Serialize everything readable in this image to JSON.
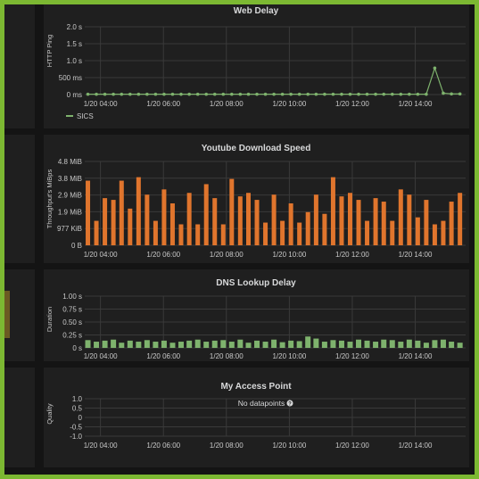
{
  "colors": {
    "accent_border": "#7cb832",
    "background": "#141414",
    "panel_bg": "#1f1f1f",
    "green_series": "#7eb26d",
    "orange_series": "#e0752d"
  },
  "chart_data": [
    {
      "id": "web-delay",
      "type": "line",
      "title": "Web Delay",
      "ylabel": "HTTP Ping",
      "xlabel": "",
      "yticks": [
        "2.0 s",
        "1.5 s",
        "1.0 s",
        "500 ms",
        "0 ms"
      ],
      "ylim": [
        0,
        2.0
      ],
      "xticks": [
        "1/20 04:00",
        "1/20 06:00",
        "1/20 08:00",
        "1/20 10:00",
        "1/20 12:00",
        "1/20 14:00"
      ],
      "xlim": [
        3.5,
        15.6
      ],
      "grid": true,
      "legend": {
        "placement": "bottom-left",
        "entries": [
          "SICS"
        ]
      },
      "series": [
        {
          "name": "SICS",
          "x": [
            3.6,
            3.87,
            4.14,
            4.41,
            4.67,
            4.94,
            5.21,
            5.48,
            5.75,
            6.02,
            6.29,
            6.56,
            6.82,
            7.09,
            7.36,
            7.63,
            7.9,
            8.17,
            8.44,
            8.7,
            8.97,
            9.24,
            9.51,
            9.78,
            10.05,
            10.32,
            10.59,
            10.85,
            11.12,
            11.39,
            11.66,
            11.93,
            12.2,
            12.47,
            12.74,
            13.0,
            13.27,
            13.54,
            13.81,
            14.08,
            14.35,
            14.62,
            14.89,
            15.15,
            15.42
          ],
          "values": [
            0.01,
            0.01,
            0.01,
            0.01,
            0.01,
            0.01,
            0.01,
            0.01,
            0.01,
            0.01,
            0.01,
            0.01,
            0.01,
            0.01,
            0.01,
            0.01,
            0.01,
            0.01,
            0.01,
            0.01,
            0.01,
            0.01,
            0.01,
            0.01,
            0.01,
            0.01,
            0.01,
            0.01,
            0.01,
            0.01,
            0.01,
            0.01,
            0.01,
            0.01,
            0.01,
            0.01,
            0.01,
            0.01,
            0.01,
            0.01,
            0.01,
            0.78,
            0.04,
            0.02,
            0.02
          ]
        }
      ]
    },
    {
      "id": "youtube-download-speed",
      "type": "bar",
      "title": "Youtube Download Speed",
      "ylabel": "Throughput's MiBps",
      "xlabel": "",
      "yticks": [
        "4.8 MiB",
        "3.8 MiB",
        "2.9 MiB",
        "1.9 MiB",
        "977 KiB",
        "0 B"
      ],
      "ylim": [
        0,
        4.8
      ],
      "xticks": [
        "1/20 04:00",
        "1/20 06:00",
        "1/20 08:00",
        "1/20 10:00",
        "1/20 12:00",
        "1/20 14:00"
      ],
      "xlim": [
        3.5,
        15.6
      ],
      "grid": true,
      "series": [
        {
          "name": "",
          "color": "#e0752d",
          "x": [
            3.6,
            3.87,
            4.14,
            4.41,
            4.67,
            4.94,
            5.21,
            5.48,
            5.75,
            6.02,
            6.29,
            6.56,
            6.82,
            7.09,
            7.36,
            7.63,
            7.9,
            8.17,
            8.44,
            8.7,
            8.97,
            9.24,
            9.51,
            9.78,
            10.05,
            10.32,
            10.59,
            10.85,
            11.12,
            11.39,
            11.66,
            11.93,
            12.2,
            12.47,
            12.74,
            13.0,
            13.27,
            13.54,
            13.81,
            14.08,
            14.35,
            14.62,
            14.89,
            15.15,
            15.42
          ],
          "values": [
            3.7,
            1.4,
            2.7,
            2.6,
            3.7,
            2.1,
            3.9,
            2.9,
            1.4,
            3.2,
            2.4,
            1.2,
            3.0,
            1.2,
            3.5,
            2.7,
            1.2,
            3.8,
            2.8,
            3.0,
            2.6,
            1.3,
            2.9,
            1.4,
            2.4,
            1.3,
            1.9,
            2.9,
            1.8,
            3.9,
            2.8,
            3.0,
            2.6,
            1.4,
            2.7,
            2.5,
            1.4,
            3.2,
            2.9,
            1.6,
            2.6,
            1.2,
            1.4,
            2.5,
            3.0
          ]
        }
      ]
    },
    {
      "id": "dns-lookup-delay",
      "type": "bar",
      "title": "DNS Lookup Delay",
      "ylabel": "Duration",
      "xlabel": "",
      "yticks": [
        "1.00 s",
        "0.75 s",
        "0.50 s",
        "0.25 s",
        "0 s"
      ],
      "ylim": [
        0,
        1.0
      ],
      "xticks": [
        "1/20 04:00",
        "1/20 06:00",
        "1/20 08:00",
        "1/20 10:00",
        "1/20 12:00",
        "1/20 14:00"
      ],
      "xlim": [
        3.5,
        15.6
      ],
      "grid": true,
      "series": [
        {
          "name": "",
          "color": "#7eb26d",
          "x": [
            3.6,
            3.87,
            4.14,
            4.41,
            4.67,
            4.94,
            5.21,
            5.48,
            5.75,
            6.02,
            6.29,
            6.56,
            6.82,
            7.09,
            7.36,
            7.63,
            7.9,
            8.17,
            8.44,
            8.7,
            8.97,
            9.24,
            9.51,
            9.78,
            10.05,
            10.32,
            10.59,
            10.85,
            11.12,
            11.39,
            11.66,
            11.93,
            12.2,
            12.47,
            12.74,
            13.0,
            13.27,
            13.54,
            13.81,
            14.08,
            14.35,
            14.62,
            14.89,
            15.15,
            15.42
          ],
          "values": [
            0.15,
            0.12,
            0.14,
            0.16,
            0.1,
            0.14,
            0.12,
            0.15,
            0.12,
            0.14,
            0.1,
            0.12,
            0.14,
            0.16,
            0.12,
            0.14,
            0.15,
            0.12,
            0.16,
            0.1,
            0.14,
            0.12,
            0.16,
            0.11,
            0.14,
            0.13,
            0.22,
            0.18,
            0.12,
            0.15,
            0.14,
            0.12,
            0.16,
            0.14,
            0.12,
            0.16,
            0.15,
            0.12,
            0.16,
            0.14,
            0.1,
            0.15,
            0.16,
            0.12,
            0.1
          ]
        }
      ]
    },
    {
      "id": "my-access-point",
      "type": "line",
      "title": "My Access Point",
      "ylabel": "Quality",
      "xlabel": "",
      "yticks": [
        "1.0",
        "0.5",
        "0",
        "-0.5",
        "-1.0"
      ],
      "ylim": [
        -1.0,
        1.0
      ],
      "xticks": [
        "1/20 04:00",
        "1/20 06:00",
        "1/20 08:00",
        "1/20 10:00",
        "1/20 12:00",
        "1/20 14:00"
      ],
      "xlim": [
        3.5,
        15.6
      ],
      "grid": true,
      "annotation": "No datapoints",
      "series": []
    }
  ]
}
